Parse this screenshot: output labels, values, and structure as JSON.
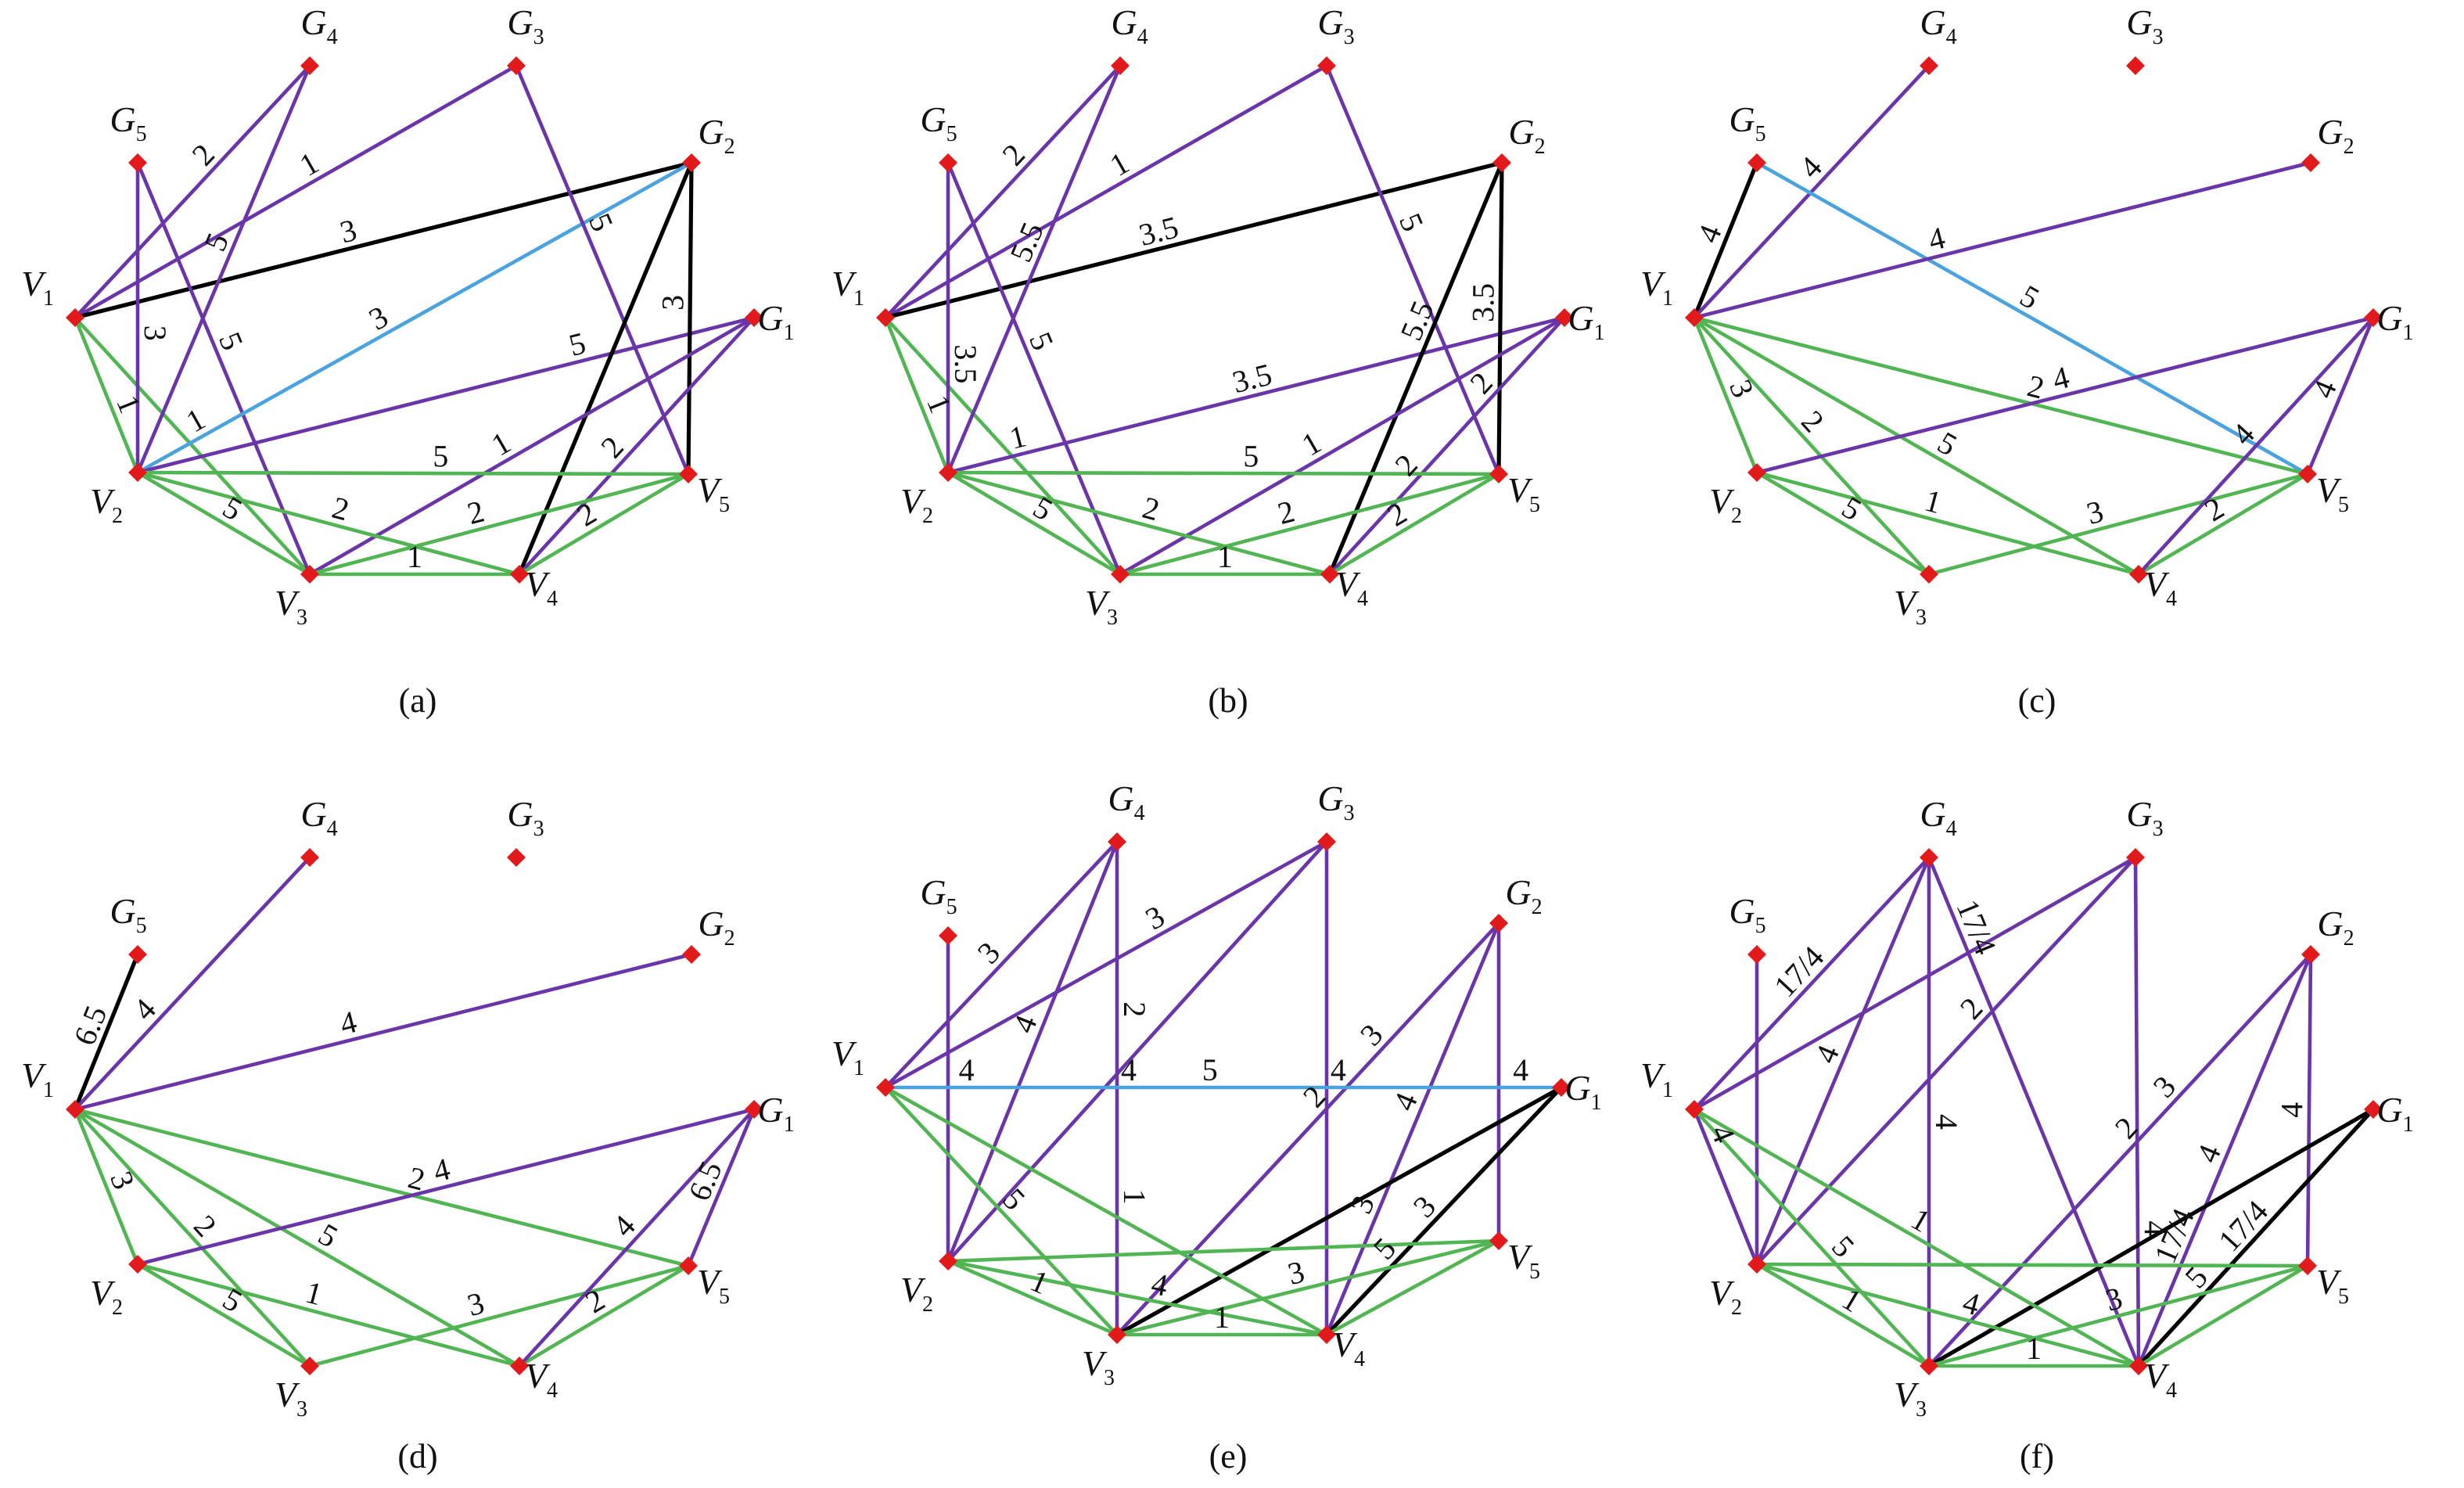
{
  "node_color": "#e31a1c",
  "nodes": [
    {
      "label": "V",
      "sub": "1"
    },
    {
      "label": "V",
      "sub": "2"
    },
    {
      "label": "V",
      "sub": "3"
    },
    {
      "label": "V",
      "sub": "4"
    },
    {
      "label": "V",
      "sub": "5"
    },
    {
      "label": "G",
      "sub": "1"
    },
    {
      "label": "G",
      "sub": "2"
    },
    {
      "label": "G",
      "sub": "3"
    },
    {
      "label": "G",
      "sub": "4"
    },
    {
      "label": "G",
      "sub": "5"
    }
  ],
  "panels": [
    {
      "caption": "(a)",
      "edges": [
        {
          "from": 0,
          "to": 8,
          "color": "#6a35a8",
          "labels": [
            "2"
          ]
        },
        {
          "from": 0,
          "to": 7,
          "color": "#6a35a8",
          "labels": [
            "1"
          ]
        },
        {
          "from": 0,
          "to": 6,
          "color": "#000000",
          "labels": [
            "3"
          ]
        },
        {
          "from": 0,
          "to": 1,
          "color": "#52b553",
          "labels": [
            "1"
          ]
        },
        {
          "from": 0,
          "to": 2,
          "color": "#52b553"
        },
        {
          "from": 9,
          "to": 1,
          "color": "#6a35a8",
          "labels": [
            "3"
          ]
        },
        {
          "from": 9,
          "to": 2,
          "color": "#6a35a8",
          "labels": [
            "5"
          ]
        },
        {
          "from": 1,
          "to": 8,
          "color": "#6a35a8",
          "labels": [
            "5"
          ]
        },
        {
          "from": 1,
          "to": 6,
          "color": "#4aa3df",
          "labels": [
            "1",
            "3"
          ]
        },
        {
          "from": 1,
          "to": 5,
          "color": "#6a35a8",
          "labels": [
            "5"
          ]
        },
        {
          "from": 7,
          "to": 4,
          "color": "#6a35a8",
          "labels": [
            "5"
          ]
        },
        {
          "from": 6,
          "to": 4,
          "color": "#000000",
          "labels": [
            "3"
          ]
        },
        {
          "from": 6,
          "to": 3,
          "color": "#000000"
        },
        {
          "from": 5,
          "to": 2,
          "color": "#6a35a8",
          "labels": [
            "1"
          ]
        },
        {
          "from": 5,
          "to": 3,
          "color": "#6a35a8",
          "labels": [
            "2"
          ]
        },
        {
          "from": 1,
          "to": 4,
          "color": "#52b553",
          "labels": [
            "5"
          ]
        },
        {
          "from": 1,
          "to": 2,
          "color": "#52b553",
          "labels": [
            "5"
          ]
        },
        {
          "from": 1,
          "to": 3,
          "color": "#52b553",
          "labels": [
            "2"
          ]
        },
        {
          "from": 2,
          "to": 3,
          "color": "#52b553",
          "labels": [
            "1"
          ]
        },
        {
          "from": 2,
          "to": 4,
          "color": "#52b553",
          "labels": [
            "2"
          ]
        },
        {
          "from": 3,
          "to": 4,
          "color": "#52b553",
          "labels": [
            "2"
          ]
        }
      ]
    },
    {
      "caption": "(b)",
      "edges": [
        {
          "from": 0,
          "to": 8,
          "color": "#6a35a8",
          "labels": [
            "2"
          ]
        },
        {
          "from": 0,
          "to": 7,
          "color": "#6a35a8",
          "labels": [
            "1"
          ]
        },
        {
          "from": 0,
          "to": 6,
          "color": "#000000",
          "labels": [
            "3.5"
          ]
        },
        {
          "from": 0,
          "to": 1,
          "color": "#52b553",
          "labels": [
            "1"
          ]
        },
        {
          "from": 0,
          "to": 2,
          "color": "#52b553"
        },
        {
          "from": 9,
          "to": 1,
          "color": "#6a35a8",
          "labels": [
            "3.5"
          ]
        },
        {
          "from": 9,
          "to": 2,
          "color": "#6a35a8",
          "labels": [
            "5"
          ]
        },
        {
          "from": 1,
          "to": 8,
          "color": "#6a35a8",
          "labels": [
            "5.5"
          ]
        },
        {
          "from": 1,
          "to": 5,
          "color": "#6a35a8",
          "labels": [
            "1",
            "3.5"
          ]
        },
        {
          "from": 7,
          "to": 4,
          "color": "#6a35a8",
          "labels": [
            "5"
          ]
        },
        {
          "from": 6,
          "to": 4,
          "color": "#000000",
          "labels": [
            "3.5"
          ]
        },
        {
          "from": 6,
          "to": 3,
          "color": "#000000",
          "labels": [
            "5.5"
          ]
        },
        {
          "from": 5,
          "to": 2,
          "color": "#6a35a8",
          "labels": [
            "1"
          ]
        },
        {
          "from": 5,
          "to": 3,
          "color": "#6a35a8",
          "labels": [
            "2",
            "2"
          ]
        },
        {
          "from": 1,
          "to": 4,
          "color": "#52b553",
          "labels": [
            "5"
          ]
        },
        {
          "from": 1,
          "to": 2,
          "color": "#52b553",
          "labels": [
            "5"
          ]
        },
        {
          "from": 1,
          "to": 3,
          "color": "#52b553",
          "labels": [
            "2"
          ]
        },
        {
          "from": 2,
          "to": 3,
          "color": "#52b553",
          "labels": [
            "1"
          ]
        },
        {
          "from": 2,
          "to": 4,
          "color": "#52b553",
          "labels": [
            "2"
          ]
        },
        {
          "from": 3,
          "to": 4,
          "color": "#52b553",
          "labels": [
            "2"
          ]
        }
      ]
    },
    {
      "caption": "(c)",
      "edges": [
        {
          "from": 9,
          "to": 0,
          "color": "#000000",
          "labels": [
            "4"
          ]
        },
        {
          "from": 0,
          "to": 8,
          "color": "#6a35a8",
          "labels": [
            "4"
          ]
        },
        {
          "from": 9,
          "to": 4,
          "color": "#4aa3df",
          "labels": [
            "5"
          ]
        },
        {
          "from": 0,
          "to": 6,
          "color": "#6a35a8",
          "labels": [
            "4"
          ]
        },
        {
          "from": 0,
          "to": 1,
          "color": "#52b553",
          "labels": [
            "3"
          ]
        },
        {
          "from": 0,
          "to": 2,
          "color": "#52b553",
          "labels": [
            "2"
          ]
        },
        {
          "from": 0,
          "to": 3,
          "color": "#52b553",
          "labels": [
            "5"
          ]
        },
        {
          "from": 0,
          "to": 4,
          "color": "#52b553",
          "labels": [
            "2"
          ]
        },
        {
          "from": 1,
          "to": 5,
          "color": "#6a35a8",
          "labels": [
            "4"
          ]
        },
        {
          "from": 1,
          "to": 2,
          "color": "#52b553",
          "labels": [
            "5"
          ]
        },
        {
          "from": 1,
          "to": 3,
          "color": "#52b553",
          "labels": [
            "1"
          ]
        },
        {
          "from": 2,
          "to": 4,
          "color": "#52b553",
          "labels": [
            "3"
          ]
        },
        {
          "from": 3,
          "to": 4,
          "color": "#52b553",
          "labels": [
            "2"
          ]
        },
        {
          "from": 3,
          "to": 5,
          "color": "#6a35a8",
          "labels": [
            "4"
          ]
        },
        {
          "from": 4,
          "to": 5,
          "color": "#6a35a8",
          "labels": [
            "4"
          ]
        }
      ]
    },
    {
      "caption": "(d)",
      "edges": [
        {
          "from": 9,
          "to": 0,
          "color": "#000000",
          "labels": [
            "6.5"
          ]
        },
        {
          "from": 0,
          "to": 8,
          "color": "#6a35a8",
          "labels": [
            "4"
          ]
        },
        {
          "from": 0,
          "to": 6,
          "color": "#6a35a8",
          "labels": [
            "4"
          ]
        },
        {
          "from": 0,
          "to": 1,
          "color": "#52b553",
          "labels": [
            "3"
          ]
        },
        {
          "from": 0,
          "to": 2,
          "color": "#52b553",
          "labels": [
            "2"
          ]
        },
        {
          "from": 0,
          "to": 3,
          "color": "#52b553",
          "labels": [
            "5"
          ]
        },
        {
          "from": 0,
          "to": 4,
          "color": "#52b553",
          "labels": [
            "2"
          ]
        },
        {
          "from": 1,
          "to": 5,
          "color": "#6a35a8",
          "labels": [
            "4"
          ]
        },
        {
          "from": 1,
          "to": 2,
          "color": "#52b553",
          "labels": [
            "5"
          ]
        },
        {
          "from": 1,
          "to": 3,
          "color": "#52b553",
          "labels": [
            "1"
          ]
        },
        {
          "from": 2,
          "to": 4,
          "color": "#52b553",
          "labels": [
            "3"
          ]
        },
        {
          "from": 3,
          "to": 4,
          "color": "#52b553",
          "labels": [
            "2"
          ]
        },
        {
          "from": 3,
          "to": 5,
          "color": "#6a35a8",
          "labels": [
            "4"
          ]
        },
        {
          "from": 4,
          "to": 5,
          "color": "#6a35a8",
          "labels": [
            "6.5"
          ]
        }
      ]
    },
    {
      "caption": "(e)",
      "edges": [
        {
          "from": 9,
          "to": 1,
          "color": "#6a35a8"
        },
        {
          "from": 0,
          "to": 8,
          "color": "#6a35a8",
          "labels": [
            "3"
          ]
        },
        {
          "from": 0,
          "to": 7,
          "color": "#6a35a8",
          "labels": [
            "3"
          ]
        },
        {
          "from": 1,
          "to": 8,
          "color": "#6a35a8",
          "labels": [
            "4"
          ]
        },
        {
          "from": 1,
          "to": 7,
          "color": "#6a35a8"
        },
        {
          "from": 8,
          "to": 2,
          "color": "#6a35a8",
          "labels": [
            "2",
            "1"
          ]
        },
        {
          "from": 7,
          "to": 3,
          "color": "#6a35a8"
        },
        {
          "from": 6,
          "to": 2,
          "color": "#6a35a8",
          "labels": [
            "3",
            "2"
          ]
        },
        {
          "from": 6,
          "to": 3,
          "color": "#6a35a8",
          "labels": [
            "4",
            "3"
          ]
        },
        {
          "from": 6,
          "to": 4,
          "color": "#6a35a8"
        },
        {
          "from": 0,
          "to": 5,
          "color": "#4aa3df",
          "labels": [
            "4",
            "4",
            "5",
            "4",
            "4"
          ]
        },
        {
          "from": 2,
          "to": 5,
          "color": "#000000"
        },
        {
          "from": 3,
          "to": 5,
          "color": "#000000",
          "labels": [
            "5",
            "3"
          ]
        },
        {
          "from": 0,
          "to": 2,
          "color": "#52b553",
          "labels": [
            "5"
          ]
        },
        {
          "from": 0,
          "to": 3,
          "color": "#52b553"
        },
        {
          "from": 1,
          "to": 2,
          "color": "#52b553",
          "labels": [
            "1"
          ]
        },
        {
          "from": 1,
          "to": 3,
          "color": "#52b553",
          "labels": [
            "4"
          ]
        },
        {
          "from": 1,
          "to": 4,
          "color": "#52b553"
        },
        {
          "from": 2,
          "to": 3,
          "color": "#52b553",
          "labels": [
            "1"
          ]
        },
        {
          "from": 2,
          "to": 4,
          "color": "#52b553",
          "labels": [
            "3"
          ]
        },
        {
          "from": 3,
          "to": 4,
          "color": "#52b553"
        }
      ]
    },
    {
      "caption": "(f)",
      "edges": [
        {
          "from": 9,
          "to": 1,
          "color": "#6a35a8"
        },
        {
          "from": 0,
          "to": 1,
          "color": "#6a35a8",
          "labels": [
            "4"
          ]
        },
        {
          "from": 0,
          "to": 8,
          "color": "#6a35a8",
          "labels": [
            "17/4"
          ]
        },
        {
          "from": 0,
          "to": 7,
          "color": "#6a35a8"
        },
        {
          "from": 1,
          "to": 8,
          "color": "#6a35a8",
          "labels": [
            "4"
          ]
        },
        {
          "from": 1,
          "to": 7,
          "color": "#6a35a8",
          "labels": [
            "2"
          ]
        },
        {
          "from": 8,
          "to": 3,
          "color": "#6a35a8",
          "labels": [
            "17/4"
          ]
        },
        {
          "from": 8,
          "to": 2,
          "color": "#6a35a8",
          "labels": [
            "4"
          ]
        },
        {
          "from": 7,
          "to": 3,
          "color": "#6a35a8",
          "labels": [
            "4"
          ]
        },
        {
          "from": 6,
          "to": 2,
          "color": "#6a35a8",
          "labels": [
            "3",
            "2"
          ]
        },
        {
          "from": 6,
          "to": 3,
          "color": "#6a35a8",
          "labels": [
            "4",
            "17/4"
          ]
        },
        {
          "from": 6,
          "to": 4,
          "color": "#6a35a8",
          "labels": [
            "4"
          ]
        },
        {
          "from": 2,
          "to": 5,
          "color": "#000000"
        },
        {
          "from": 3,
          "to": 5,
          "color": "#000000",
          "labels": [
            "5",
            "17/4"
          ]
        },
        {
          "from": 0,
          "to": 2,
          "color": "#52b553",
          "labels": [
            "5"
          ]
        },
        {
          "from": 0,
          "to": 3,
          "color": "#52b553",
          "labels": [
            "1"
          ]
        },
        {
          "from": 1,
          "to": 2,
          "color": "#52b553",
          "labels": [
            "1"
          ]
        },
        {
          "from": 1,
          "to": 3,
          "color": "#52b553",
          "labels": [
            "4"
          ]
        },
        {
          "from": 1,
          "to": 4,
          "color": "#52b553"
        },
        {
          "from": 2,
          "to": 3,
          "color": "#52b553",
          "labels": [
            "1"
          ]
        },
        {
          "from": 2,
          "to": 4,
          "color": "#52b553",
          "labels": [
            "3"
          ]
        },
        {
          "from": 3,
          "to": 4,
          "color": "#52b553"
        }
      ]
    }
  ]
}
